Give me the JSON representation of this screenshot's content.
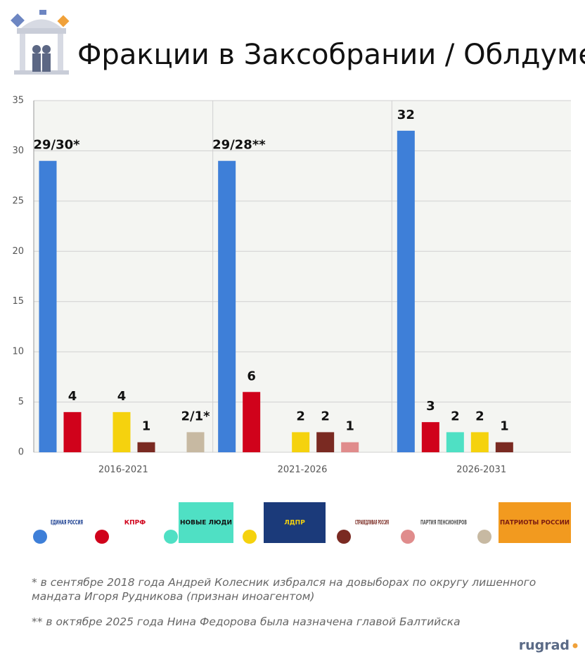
{
  "chart_data": {
    "type": "bar",
    "title": "Фракции в Заксобрании / Облдуме",
    "categories": [
      "2016-2021",
      "2021-2026",
      "2026-2031"
    ],
    "series": [
      {
        "name": "ЕДИНАЯ РОССИЯ",
        "color": "#3e7fd8",
        "values": [
          29,
          29,
          32
        ],
        "value_labels": [
          "29/30*",
          "29/28**",
          "32"
        ]
      },
      {
        "name": "КПРФ",
        "color": "#d0021b",
        "values": [
          4,
          6,
          3
        ]
      },
      {
        "name": "НОВЫЕ ЛЮДИ",
        "color": "#4fe0c4",
        "values": [
          null,
          null,
          2
        ]
      },
      {
        "name": "ЛДПР",
        "color": "#f5d20e",
        "values": [
          4,
          2,
          2
        ]
      },
      {
        "name": "СПРАВЕДЛИВАЯ РОССИЯ",
        "color": "#7a2a22",
        "values": [
          1,
          2,
          1
        ]
      },
      {
        "name": "ПАРТИЯ ПЕНСИОНЕРОВ",
        "color": "#e08c8c",
        "values": [
          null,
          1,
          null
        ]
      },
      {
        "name": "ПАТРИОТЫ РОССИИ",
        "color": "#c7b9a2",
        "values": [
          2,
          null,
          null
        ],
        "value_labels": [
          "2/1*",
          null,
          null
        ]
      }
    ],
    "ylim": [
      0,
      35
    ],
    "yticks": [
      0,
      5,
      10,
      15,
      20,
      25,
      30,
      35
    ],
    "grid": true,
    "notes": [
      "* в сентябре 2018 года Андрей Колесник избрался на довыборах по округу лишенного мандата Игоря Рудникова (признан иноагентом)",
      "** в октябре 2025 года Нина Федорова была назначена главой Балтийска"
    ],
    "source": "rugrad"
  }
}
